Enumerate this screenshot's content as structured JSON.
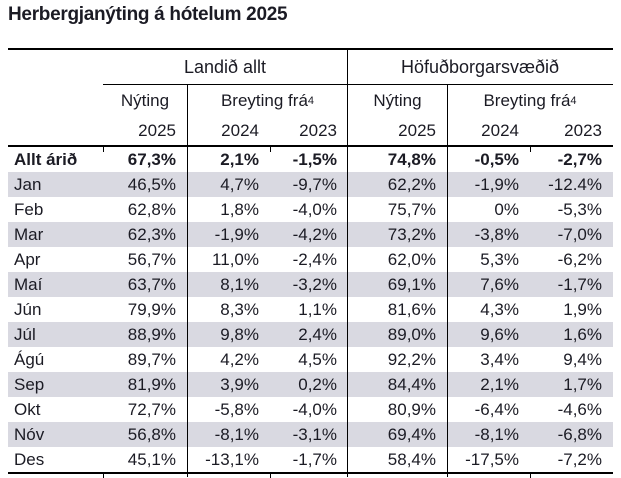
{
  "title": "Herbergjanýting á hótelum 2025",
  "table": {
    "groups": [
      {
        "label": "Landið allt"
      },
      {
        "label": "Höfuðborgarsvæðið"
      }
    ],
    "subheaders": {
      "nyting": "Nýting",
      "breyting": "Breyting frá",
      "breyting_sup": "4"
    },
    "years": [
      "2025",
      "2024",
      "2023"
    ],
    "rows": [
      {
        "label": "Allt árið",
        "values": [
          "67,3%",
          "2,1%",
          "-1,5%",
          "74,8%",
          "-0,5%",
          "-2,7%"
        ]
      },
      {
        "label": "Jan",
        "values": [
          "46,5%",
          "4,7%",
          "-9,7%",
          "62,2%",
          "-1,9%",
          "-12.4%"
        ]
      },
      {
        "label": "Feb",
        "values": [
          "62,8%",
          "1,8%",
          "-4,0%",
          "75,7%",
          "0%",
          "-5,3%"
        ]
      },
      {
        "label": "Mar",
        "values": [
          "62,3%",
          "-1,9%",
          "-4,2%",
          "73,2%",
          "-3,8%",
          "-7,0%"
        ]
      },
      {
        "label": "Apr",
        "values": [
          "56,7%",
          "11,0%",
          "-2,4%",
          "62,0%",
          "5,3%",
          "-6,2%"
        ]
      },
      {
        "label": "Maí",
        "values": [
          "63,7%",
          "8,1%",
          "-3,2%",
          "69,1%",
          "7,6%",
          "-1,7%"
        ]
      },
      {
        "label": "Jún",
        "values": [
          "79,9%",
          "8,3%",
          "1,1%",
          "81,6%",
          "4,3%",
          "1,9%"
        ]
      },
      {
        "label": "Júl",
        "values": [
          "88,9%",
          "9,8%",
          "2,4%",
          "89,0%",
          "9,6%",
          "1,6%"
        ]
      },
      {
        "label": "Ágú",
        "values": [
          "89,7%",
          "4,2%",
          "4,5%",
          "92,2%",
          "3,4%",
          "9,4%"
        ]
      },
      {
        "label": "Sep",
        "values": [
          "81,9%",
          "3,9%",
          "0,2%",
          "84,4%",
          "2,1%",
          "1,7%"
        ]
      },
      {
        "label": "Okt",
        "values": [
          "72,7%",
          "-5,8%",
          "-4,0%",
          "80,9%",
          "-6,4%",
          "-4,6%"
        ]
      },
      {
        "label": "Nóv",
        "values": [
          "56,8%",
          "-8,1%",
          "-3,1%",
          "69,4%",
          "-8,1%",
          "-6,8%"
        ]
      },
      {
        "label": "Des",
        "values": [
          "45,1%",
          "-13,1%",
          "-1,7%",
          "58,4%",
          "-17,5%",
          "-7,2%"
        ]
      }
    ]
  },
  "colors": {
    "row_shade": "#d9d9e1",
    "text": "#1b1b24",
    "border": "#000000"
  },
  "chart_data": {
    "type": "table",
    "title": "Herbergjanýting á hótelum 2025",
    "row_labels": [
      "Allt árið",
      "Jan",
      "Feb",
      "Mar",
      "Apr",
      "Maí",
      "Jún",
      "Júl",
      "Ágú",
      "Sep",
      "Okt",
      "Nóv",
      "Des"
    ],
    "columns": [
      "Landið allt - Nýting 2025",
      "Landið allt - Breyting frá 2024",
      "Landið allt - Breyting frá 2023",
      "Höfuðborgarsvæðið - Nýting 2025",
      "Höfuðborgarsvæðið - Breyting frá 2024",
      "Höfuðborgarsvæðið - Breyting frá 2023"
    ],
    "values": [
      [
        67.3,
        2.1,
        -1.5,
        74.8,
        -0.5,
        -2.7
      ],
      [
        46.5,
        4.7,
        -9.7,
        62.2,
        -1.9,
        -12.4
      ],
      [
        62.8,
        1.8,
        -4.0,
        75.7,
        0,
        -5.3
      ],
      [
        62.3,
        -1.9,
        -4.2,
        73.2,
        -3.8,
        -7.0
      ],
      [
        56.7,
        11.0,
        -2.4,
        62.0,
        5.3,
        -6.2
      ],
      [
        63.7,
        8.1,
        -3.2,
        69.1,
        7.6,
        -1.7
      ],
      [
        79.9,
        8.3,
        1.1,
        81.6,
        4.3,
        1.9
      ],
      [
        88.9,
        9.8,
        2.4,
        89.0,
        9.6,
        1.6
      ],
      [
        89.7,
        4.2,
        4.5,
        92.2,
        3.4,
        9.4
      ],
      [
        81.9,
        3.9,
        0.2,
        84.4,
        2.1,
        1.7
      ],
      [
        72.7,
        -5.8,
        -4.0,
        80.9,
        -6.4,
        -4.6
      ],
      [
        56.8,
        -8.1,
        -3.1,
        69.4,
        -8.1,
        -6.8
      ],
      [
        45.1,
        -13.1,
        -1.7,
        58.4,
        -17.5,
        -7.2
      ]
    ]
  }
}
